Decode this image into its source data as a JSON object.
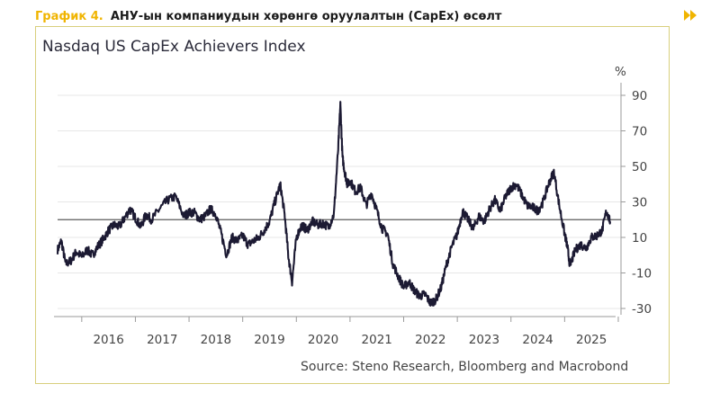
{
  "header": {
    "label": "График 4.",
    "title": "АНУ-ын компаниудын хөрөнгө оруулалтын (CapEx) өсөлт",
    "accent_color": "#f0b400",
    "arrow_icon": "double-chevron-right-icon"
  },
  "chart_data": {
    "type": "line",
    "title": "Nasdaq US CapEx Achievers Index",
    "ylabel": "%",
    "xlabel": "",
    "source": "Source: Steno Research, Bloomberg and Macrobond",
    "x_tick_labels": [
      "2016",
      "2017",
      "2018",
      "2019",
      "2020",
      "2021",
      "2022",
      "2023",
      "2024",
      "2025"
    ],
    "y_ticks": [
      90,
      70,
      50,
      30,
      10,
      -10,
      -30
    ],
    "y_tick_labels": [
      "90",
      "70",
      "50",
      "30",
      "10",
      "-10",
      "-30"
    ],
    "xlim": [
      2015.55,
      2025.95
    ],
    "ylim": [
      -36,
      96
    ],
    "reference_line": 20,
    "line_color": "#1c1a33",
    "series": [
      {
        "name": "Nasdaq US CapEx Achievers Index",
        "x": [
          2015.55,
          2015.62,
          2015.7,
          2015.8,
          2015.9,
          2016.0,
          2016.1,
          2016.2,
          2016.3,
          2016.4,
          2016.5,
          2016.6,
          2016.7,
          2016.8,
          2016.9,
          2017.0,
          2017.1,
          2017.2,
          2017.3,
          2017.45,
          2017.6,
          2017.75,
          2017.9,
          2018.0,
          2018.1,
          2018.2,
          2018.3,
          2018.4,
          2018.5,
          2018.6,
          2018.7,
          2018.8,
          2018.9,
          2019.0,
          2019.1,
          2019.2,
          2019.3,
          2019.4,
          2019.5,
          2019.6,
          2019.7,
          2019.78,
          2019.85,
          2019.92,
          2020.0,
          2020.1,
          2020.2,
          2020.3,
          2020.4,
          2020.5,
          2020.6,
          2020.7,
          2020.78,
          2020.82,
          2020.86,
          2020.9,
          2020.95,
          2021.0,
          2021.1,
          2021.2,
          2021.3,
          2021.4,
          2021.5,
          2021.6,
          2021.7,
          2021.8,
          2021.9,
          2022.0,
          2022.1,
          2022.2,
          2022.3,
          2022.4,
          2022.5,
          2022.6,
          2022.7,
          2022.8,
          2022.9,
          2023.0,
          2023.1,
          2023.2,
          2023.3,
          2023.4,
          2023.5,
          2023.6,
          2023.7,
          2023.8,
          2023.9,
          2024.0,
          2024.1,
          2024.2,
          2024.3,
          2024.4,
          2024.5,
          2024.6,
          2024.7,
          2024.8,
          2024.9,
          2025.0,
          2025.05,
          2025.1,
          2025.2,
          2025.3,
          2025.4,
          2025.5,
          2025.6,
          2025.7,
          2025.78,
          2025.85
        ],
        "values": [
          3,
          8,
          -5,
          -3,
          2,
          -1,
          3,
          0,
          5,
          9,
          14,
          17,
          16,
          21,
          26,
          21,
          16,
          23,
          20,
          26,
          31,
          33,
          22,
          24,
          24,
          20,
          22,
          26,
          23,
          12,
          0,
          10,
          8,
          11,
          6,
          8,
          10,
          14,
          19,
          30,
          40,
          23,
          0,
          -15,
          10,
          17,
          14,
          19,
          17,
          18,
          16,
          23,
          60,
          85,
          55,
          47,
          40,
          42,
          36,
          38,
          28,
          35,
          25,
          15,
          12,
          -5,
          -12,
          -18,
          -15,
          -20,
          -23,
          -22,
          -27,
          -25,
          -18,
          -5,
          5,
          12,
          25,
          20,
          15,
          22,
          19,
          26,
          31,
          25,
          33,
          38,
          40,
          34,
          28,
          27,
          25,
          30,
          40,
          47,
          28,
          12,
          5,
          -6,
          3,
          6,
          4,
          10,
          11,
          14,
          25,
          19
        ]
      }
    ]
  },
  "footer": {
    "source": "Source: Steno Research, Bloomberg and Macrobond"
  }
}
